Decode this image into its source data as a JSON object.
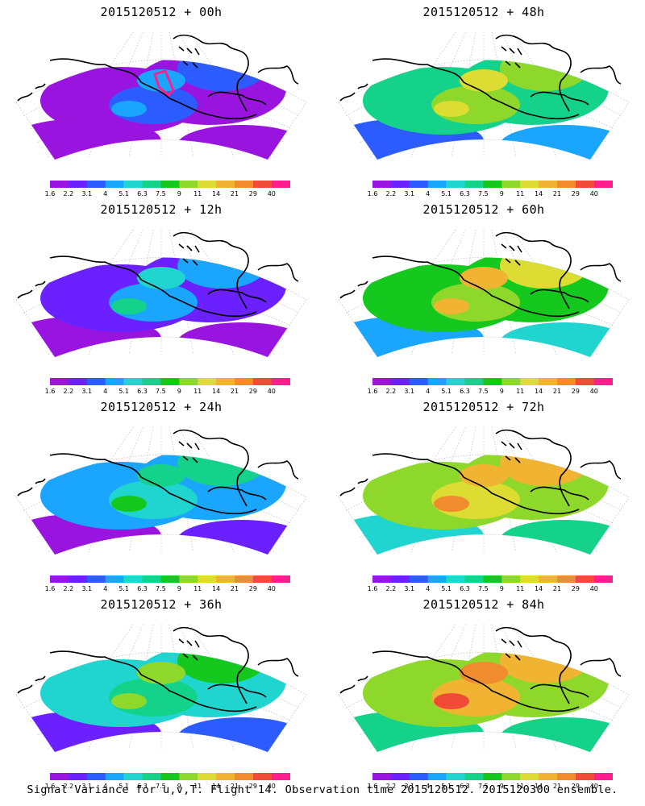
{
  "panels": [
    {
      "title": "2015120512 + 00h",
      "lead_hours": 0,
      "intensity_level": 0.12
    },
    {
      "title": "2015120512 + 48h",
      "lead_hours": 48,
      "intensity_level": 0.58
    },
    {
      "title": "2015120512 + 12h",
      "lead_hours": 12,
      "intensity_level": 0.26
    },
    {
      "title": "2015120512 + 60h",
      "lead_hours": 60,
      "intensity_level": 0.66
    },
    {
      "title": "2015120512 + 24h",
      "lead_hours": 24,
      "intensity_level": 0.38
    },
    {
      "title": "2015120512 + 72h",
      "lead_hours": 72,
      "intensity_level": 0.74
    },
    {
      "title": "2015120512 + 36h",
      "lead_hours": 36,
      "intensity_level": 0.48
    },
    {
      "title": "2015120512 + 84h",
      "lead_hours": 84,
      "intensity_level": 0.8
    }
  ],
  "colorbar": {
    "labels": [
      "1.6",
      "2.2",
      "3.1",
      "4",
      "5.1",
      "6.3",
      "7.5",
      "9",
      "11",
      "14",
      "21",
      "29",
      "40"
    ],
    "colors": [
      "#9a14e0",
      "#6a20ff",
      "#2c5cff",
      "#1aa6ff",
      "#20d4d0",
      "#14d28a",
      "#14c81e",
      "#8ed82c",
      "#dcdc32",
      "#f0b432",
      "#f08c2e",
      "#f04b37",
      "#ff1e8c"
    ]
  },
  "caption": "Signal Variance for u,v,T. Flight 14. Observation time 2015120512. 2015120300 ensemble."
}
